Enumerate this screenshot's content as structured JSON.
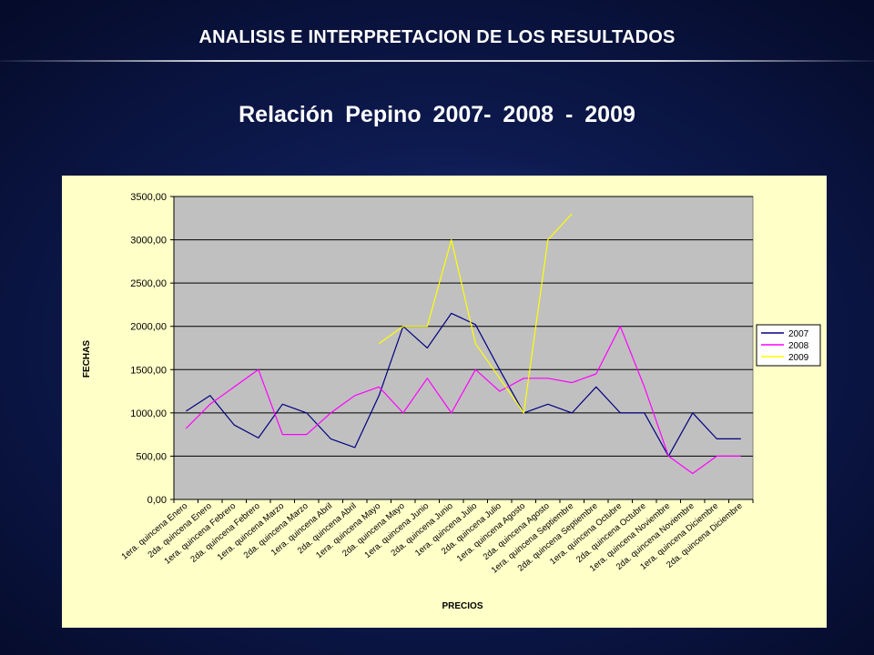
{
  "slide": {
    "title": "ANALISIS E INTERPRETACION  DE LOS RESULTADOS"
  },
  "chart_data": {
    "type": "line",
    "title": "Relación Pepino 2007- 2008 - 2009",
    "xlabel": "PRECIOS",
    "ylabel": "FECHAS",
    "ylim": [
      0,
      3500
    ],
    "ytick_labels": [
      "0,00",
      "500,00",
      "1000,00",
      "1500,00",
      "2000,00",
      "2500,00",
      "3000,00",
      "3500,00"
    ],
    "grid": true,
    "legend_position": "right",
    "plot_background": "#c0c0c0",
    "chart_background": "#ffffc8",
    "categories": [
      "1era. quincena Enero",
      "2da. quincena Enero",
      "1era. quincena Febrero",
      "2da. quincena Febrero",
      "1era. quincena Marzo",
      "2da. quincena Marzo",
      "1era. quincena Abril",
      "2da. quincena Abril",
      "1era. quincena Mayo",
      "2da. quincena Mayo",
      "1era. quincena Junio",
      "2da. quincena Junio",
      "1era. quincena Julio",
      "2da. quincena Julio",
      "1era. quincena Agosto",
      "2da. quincena Agosto",
      "1era. quincena Septiembre",
      "2da. quincena Septiembre",
      "1era. quincena Octubre",
      "2da. quincena Octubre",
      "1era. quincena Noviembre",
      "2da. quincena Noviembre",
      "1era. quincena Diciembre",
      "2da. quincena Diciembre"
    ],
    "category_positions": [
      0.5,
      1.5,
      2.5,
      3.5,
      4.5,
      5.5,
      6.5,
      7.5,
      8.5,
      9.5,
      10.5,
      11.5,
      12.5,
      13.5,
      14.5,
      15.5,
      16.5,
      17.5,
      18.5,
      19.5,
      20.5,
      21.5,
      22.5,
      23.5
    ],
    "x_count": 24,
    "series": [
      {
        "name": "2007",
        "color": "#000080",
        "x": [
          0,
          1,
          2,
          3,
          4,
          5,
          6,
          7,
          8,
          9,
          10,
          11,
          12,
          13,
          14,
          15,
          16,
          17,
          18,
          19,
          20,
          21,
          22,
          23
        ],
        "values": [
          1020,
          1200,
          860,
          710,
          1100,
          1000,
          700,
          600,
          1200,
          2000,
          1750,
          2150,
          2020,
          1500,
          1000,
          1100,
          1000,
          1300,
          1000,
          1000,
          500,
          1000,
          700,
          700
        ]
      },
      {
        "name": "2008",
        "color": "#ff00ff",
        "x": [
          0,
          1,
          2,
          3,
          4,
          5,
          6,
          7,
          8,
          9,
          10,
          11,
          12,
          13,
          14,
          15,
          16,
          17,
          18,
          19,
          20,
          21,
          22,
          23
        ],
        "values": [
          820,
          1100,
          1300,
          1500,
          750,
          750,
          1000,
          1200,
          1300,
          1000,
          1400,
          1000,
          1500,
          1250,
          1400,
          1400,
          1350,
          1450,
          2000,
          1300,
          500,
          300,
          500,
          500
        ]
      },
      {
        "name": "2009",
        "color": "#ffff00",
        "x": [
          8,
          9,
          10,
          11,
          12,
          13,
          14,
          15,
          16
        ],
        "values": [
          1800,
          2000,
          2000,
          3000,
          1800,
          1400,
          1000,
          3000,
          3300
        ]
      }
    ]
  }
}
